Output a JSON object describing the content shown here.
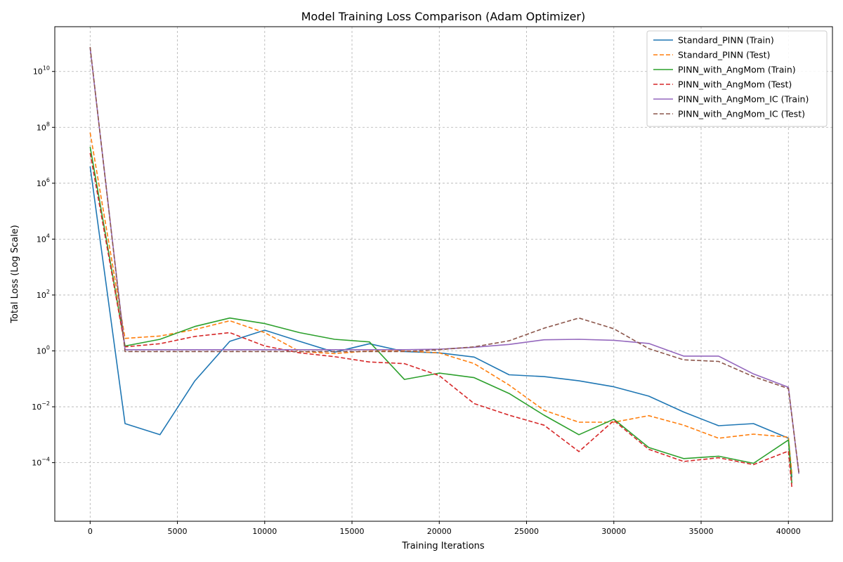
{
  "chart_data": {
    "type": "line",
    "title": "Model Training Loss Comparison (Adam Optimizer)",
    "xlabel": "Training Iterations",
    "ylabel": "Total Loss (Log Scale)",
    "xscale": "linear",
    "yscale": "log",
    "xlim": [
      -2025,
      42525
    ],
    "ylim": [
      8e-07,
      400000000000.0
    ],
    "xticks": [
      0,
      5000,
      10000,
      15000,
      20000,
      25000,
      30000,
      35000,
      40000
    ],
    "xtick_labels": [
      "0",
      "5000",
      "10000",
      "15000",
      "20000",
      "25000",
      "30000",
      "35000",
      "40000"
    ],
    "yticks_exponents": [
      -4,
      -2,
      0,
      2,
      4,
      6,
      8,
      10
    ],
    "ytick_base": "10",
    "grid": true,
    "legend_position": "top-right",
    "series": [
      {
        "name": "Standard_PINN (Train)",
        "color": "#1f77b4",
        "dash": "solid",
        "x": [
          0,
          2000,
          4000,
          6000,
          8000,
          10000,
          12000,
          14000,
          16000,
          18000,
          20000,
          22000,
          24000,
          26000,
          28000,
          30000,
          32000,
          34000,
          36000,
          38000,
          40000,
          40200
        ],
        "y": [
          4000000.0,
          0.0025,
          0.001,
          0.085,
          2.2,
          5.5,
          2.2,
          0.9,
          1.8,
          0.95,
          0.85,
          0.6,
          0.14,
          0.12,
          0.085,
          0.052,
          0.024,
          0.0065,
          0.0021,
          0.0025,
          0.00075,
          3e-05
        ]
      },
      {
        "name": "Standard_PINN (Test)",
        "color": "#ff7f0e",
        "dash": "dashed",
        "x": [
          0,
          2000,
          4000,
          6000,
          8000,
          10000,
          12000,
          14000,
          16000,
          18000,
          20000,
          22000,
          24000,
          26000,
          28000,
          30000,
          32000,
          34000,
          36000,
          38000,
          40000,
          40200
        ],
        "y": [
          65000000.0,
          2.8,
          3.4,
          5.8,
          12,
          4.5,
          0.95,
          0.8,
          1.0,
          1.0,
          0.85,
          0.35,
          0.06,
          0.0075,
          0.0028,
          0.0028,
          0.0048,
          0.0022,
          0.00075,
          0.00105,
          0.00082,
          4e-05
        ]
      },
      {
        "name": "PINN_with_AngMom (Train)",
        "color": "#2ca02c",
        "dash": "solid",
        "x": [
          0,
          2000,
          4000,
          6000,
          8000,
          10000,
          12000,
          14000,
          16000,
          18000,
          20000,
          22000,
          24000,
          26000,
          28000,
          30000,
          32000,
          34000,
          36000,
          38000,
          40000,
          40200
        ],
        "y": [
          20000000.0,
          1.5,
          2.6,
          7.5,
          15,
          9.5,
          4.5,
          2.6,
          2.1,
          0.095,
          0.16,
          0.11,
          0.03,
          0.005,
          0.001,
          0.0036,
          0.00035,
          0.00014,
          0.00017,
          9.5e-05,
          0.00065,
          1.8e-05
        ]
      },
      {
        "name": "PINN_with_AngMom (Test)",
        "color": "#d62728",
        "dash": "dashed",
        "x": [
          0,
          2000,
          4000,
          6000,
          8000,
          10000,
          12000,
          14000,
          16000,
          18000,
          20000,
          22000,
          24000,
          26000,
          28000,
          30000,
          32000,
          34000,
          36000,
          38000,
          40000,
          40200
        ],
        "y": [
          12000000.0,
          1.4,
          1.8,
          3.3,
          4.5,
          1.5,
          0.85,
          0.62,
          0.4,
          0.35,
          0.13,
          0.013,
          0.005,
          0.0022,
          0.00025,
          0.0032,
          0.0003,
          0.00011,
          0.00015,
          8.5e-05,
          0.00026,
          1.3e-05
        ]
      },
      {
        "name": "PINN_with_AngMom_IC (Train)",
        "color": "#9467bd",
        "dash": "solid",
        "x": [
          0,
          2000,
          4000,
          6000,
          8000,
          10000,
          12000,
          14000,
          16000,
          18000,
          20000,
          22000,
          24000,
          26000,
          28000,
          30000,
          32000,
          34000,
          36000,
          38000,
          40000,
          40600
        ],
        "y": [
          70000000000.0,
          1.1,
          1.1,
          1.1,
          1.1,
          1.1,
          1.1,
          1.1,
          1.1,
          1.1,
          1.15,
          1.35,
          1.7,
          2.5,
          2.6,
          2.4,
          1.85,
          0.65,
          0.65,
          0.15,
          0.05,
          4e-05
        ]
      },
      {
        "name": "PINN_with_AngMom_IC (Test)",
        "color": "#8c564b",
        "dash": "dashed",
        "x": [
          0,
          2000,
          4000,
          6000,
          8000,
          10000,
          12000,
          14000,
          16000,
          18000,
          20000,
          22000,
          24000,
          26000,
          28000,
          30000,
          32000,
          34000,
          36000,
          38000,
          40000,
          40600
        ],
        "y": [
          75000000000.0,
          0.95,
          0.95,
          0.95,
          0.95,
          0.95,
          0.95,
          0.95,
          0.95,
          0.95,
          1.1,
          1.4,
          2.3,
          6.5,
          15,
          6.2,
          1.2,
          0.48,
          0.42,
          0.12,
          0.045,
          4.5e-05
        ]
      }
    ]
  }
}
